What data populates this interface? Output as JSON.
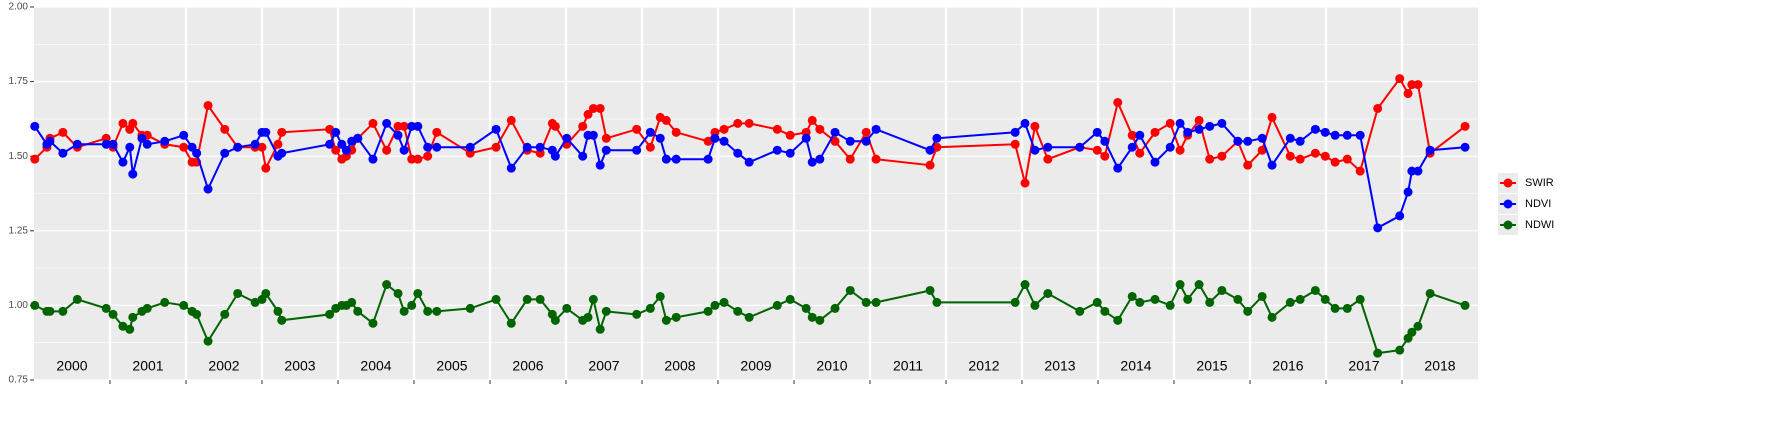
{
  "chart_data": {
    "type": "line",
    "x": [
      2000.01,
      2000.17,
      2000.21,
      2000.38,
      2000.57,
      2000.95,
      2001.04,
      2001.17,
      2001.26,
      2001.3,
      2001.42,
      2001.49,
      2001.72,
      2001.97,
      2002.08,
      2002.14,
      2002.29,
      2002.51,
      2002.68,
      2002.91,
      2003.0,
      2003.05,
      2003.21,
      2003.26,
      2003.89,
      2003.97,
      2004.05,
      2004.11,
      2004.18,
      2004.26,
      2004.46,
      2004.64,
      2004.79,
      2004.87,
      2004.97,
      2005.05,
      2005.18,
      2005.3,
      2005.74,
      2006.08,
      2006.28,
      2006.49,
      2006.66,
      2006.82,
      2006.86,
      2007.01,
      2007.22,
      2007.29,
      2007.36,
      2007.45,
      2007.53,
      2007.93,
      2008.11,
      2008.24,
      2008.32,
      2008.45,
      2008.87,
      2008.96,
      2009.08,
      2009.26,
      2009.41,
      2009.78,
      2009.95,
      2010.16,
      2010.24,
      2010.34,
      2010.54,
      2010.74,
      2010.95,
      2011.08,
      2011.79,
      2011.88,
      2012.91,
      2013.04,
      2013.17,
      2013.34,
      2013.76,
      2013.99,
      2014.09,
      2014.26,
      2014.45,
      2014.55,
      2014.75,
      2014.95,
      2015.08,
      2015.18,
      2015.33,
      2015.47,
      2015.63,
      2015.84,
      2015.97,
      2016.16,
      2016.29,
      2016.53,
      2016.66,
      2016.86,
      2016.99,
      2017.12,
      2017.28,
      2017.45,
      2017.68,
      2017.97,
      2018.08,
      2018.13,
      2018.21,
      2018.37,
      2018.83
    ],
    "series": [
      {
        "name": "SWIR",
        "color": "#ff0000",
        "values": [
          1.49,
          1.53,
          1.56,
          1.58,
          1.53,
          1.56,
          1.53,
          1.61,
          1.59,
          1.61,
          1.57,
          1.57,
          1.54,
          1.53,
          1.48,
          1.48,
          1.67,
          1.59,
          1.53,
          1.53,
          1.53,
          1.46,
          1.54,
          1.58,
          1.59,
          1.52,
          1.49,
          1.5,
          1.52,
          1.56,
          1.61,
          1.52,
          1.6,
          1.6,
          1.49,
          1.49,
          1.5,
          1.58,
          1.51,
          1.53,
          1.62,
          1.52,
          1.51,
          1.61,
          1.6,
          1.54,
          1.6,
          1.64,
          1.66,
          1.66,
          1.56,
          1.59,
          1.53,
          1.63,
          1.62,
          1.58,
          1.55,
          1.58,
          1.59,
          1.61,
          1.61,
          1.59,
          1.57,
          1.58,
          1.62,
          1.59,
          1.55,
          1.49,
          1.58,
          1.49,
          1.47,
          1.53,
          1.54,
          1.41,
          1.6,
          1.49,
          1.53,
          1.52,
          1.5,
          1.68,
          1.57,
          1.51,
          1.58,
          1.61,
          1.52,
          1.57,
          1.62,
          1.49,
          1.5,
          1.55,
          1.47,
          1.52,
          1.63,
          1.5,
          1.49,
          1.51,
          1.5,
          1.48,
          1.49,
          1.45,
          1.66,
          1.76,
          1.71,
          1.74,
          1.74,
          1.51,
          1.6
        ]
      },
      {
        "name": "NDVI",
        "color": "#0000ff",
        "values": [
          1.6,
          1.54,
          1.55,
          1.51,
          1.54,
          1.54,
          1.54,
          1.48,
          1.53,
          1.44,
          1.56,
          1.54,
          1.55,
          1.57,
          1.53,
          1.51,
          1.39,
          1.51,
          1.53,
          1.54,
          1.58,
          1.58,
          1.5,
          1.51,
          1.54,
          1.58,
          1.54,
          1.52,
          1.55,
          1.56,
          1.49,
          1.61,
          1.57,
          1.52,
          1.6,
          1.6,
          1.53,
          1.53,
          1.53,
          1.59,
          1.46,
          1.53,
          1.53,
          1.52,
          1.5,
          1.56,
          1.5,
          1.57,
          1.57,
          1.47,
          1.52,
          1.52,
          1.58,
          1.56,
          1.49,
          1.49,
          1.49,
          1.56,
          1.55,
          1.51,
          1.48,
          1.52,
          1.51,
          1.56,
          1.48,
          1.49,
          1.58,
          1.55,
          1.55,
          1.59,
          1.52,
          1.56,
          1.58,
          1.61,
          1.52,
          1.53,
          1.53,
          1.58,
          1.55,
          1.46,
          1.53,
          1.57,
          1.48,
          1.53,
          1.61,
          1.58,
          1.59,
          1.6,
          1.61,
          1.55,
          1.55,
          1.56,
          1.47,
          1.56,
          1.55,
          1.59,
          1.58,
          1.57,
          1.57,
          1.57,
          1.26,
          1.3,
          1.38,
          1.45,
          1.45,
          1.52,
          1.53
        ]
      },
      {
        "name": "NDWI",
        "color": "#006400",
        "values": [
          1.0,
          0.98,
          0.98,
          0.98,
          1.02,
          0.99,
          0.97,
          0.93,
          0.92,
          0.96,
          0.98,
          0.99,
          1.01,
          1.0,
          0.98,
          0.97,
          0.88,
          0.97,
          1.04,
          1.01,
          1.02,
          1.04,
          0.98,
          0.95,
          0.97,
          0.99,
          1.0,
          1.0,
          1.01,
          0.98,
          0.94,
          1.07,
          1.04,
          0.98,
          1.0,
          1.04,
          0.98,
          0.98,
          0.99,
          1.02,
          0.94,
          1.02,
          1.02,
          0.97,
          0.95,
          0.99,
          0.95,
          0.96,
          1.02,
          0.92,
          0.98,
          0.97,
          0.99,
          1.03,
          0.95,
          0.96,
          0.98,
          1.0,
          1.01,
          0.98,
          0.96,
          1.0,
          1.02,
          0.99,
          0.96,
          0.95,
          0.99,
          1.05,
          1.01,
          1.01,
          1.05,
          1.01,
          1.01,
          1.07,
          1.0,
          1.04,
          0.98,
          1.01,
          0.98,
          0.95,
          1.03,
          1.01,
          1.02,
          1.0,
          1.07,
          1.02,
          1.07,
          1.01,
          1.05,
          1.02,
          0.98,
          1.03,
          0.96,
          1.01,
          1.02,
          1.05,
          1.02,
          0.99,
          0.99,
          1.02,
          0.84,
          0.85,
          0.89,
          0.91,
          0.93,
          1.04,
          1.0
        ]
      }
    ],
    "xlim": [
      2000,
      2019
    ],
    "ylim": [
      0.75,
      2
    ],
    "yticks": [
      0.75,
      {
        "value": 1,
        "label": "1.00"
      },
      1.25,
      {
        "value": 1.5,
        "label": "1.50"
      },
      1.75,
      {
        "value": 2,
        "label": "2.00"
      }
    ],
    "y_minor_grid": [
      0.875,
      1.125,
      1.375,
      1.625,
      1.875
    ],
    "x_grid_lines": [
      2001,
      2002,
      2003,
      2004,
      2005,
      2006,
      2007,
      2008,
      2009,
      2010,
      2011,
      2012,
      2013,
      2014,
      2015,
      2016,
      2017,
      2018
    ],
    "xticks": [
      {
        "value": 2000.5,
        "label": "2000"
      },
      {
        "value": 2001.5,
        "label": "2001"
      },
      {
        "value": 2002.5,
        "label": "2002"
      },
      {
        "value": 2003.5,
        "label": "2003"
      },
      {
        "value": 2004.5,
        "label": "2004"
      },
      {
        "value": 2005.5,
        "label": "2005"
      },
      {
        "value": 2006.5,
        "label": "2006"
      },
      {
        "value": 2007.5,
        "label": "2007"
      },
      {
        "value": 2008.5,
        "label": "2008"
      },
      {
        "value": 2009.5,
        "label": "2009"
      },
      {
        "value": 2010.5,
        "label": "2010"
      },
      {
        "value": 2011.5,
        "label": "2011"
      },
      {
        "value": 2012.5,
        "label": "2012"
      },
      {
        "value": 2013.5,
        "label": "2013"
      },
      {
        "value": 2014.5,
        "label": "2014"
      },
      {
        "value": 2015.5,
        "label": "2015"
      },
      {
        "value": 2016.5,
        "label": "2016"
      },
      {
        "value": 2017.5,
        "label": "2017"
      },
      {
        "value": 2018.5,
        "label": "2018"
      }
    ],
    "grid": true,
    "legend": "right"
  }
}
